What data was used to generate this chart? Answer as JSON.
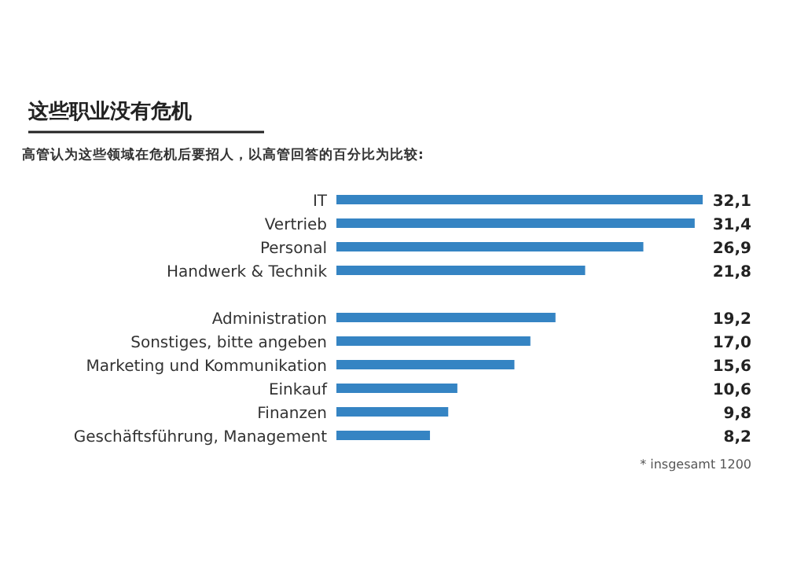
{
  "chart_data": {
    "type": "bar",
    "orientation": "horizontal",
    "title": "这些职业没有危机",
    "subtitle": "高管认为这些领域在危机后要招人，以高管回答的百分比为比较:",
    "categories": [
      "IT",
      "Vertrieb",
      "Personal",
      "Handwerk & Technik",
      null,
      "Administration",
      "Sonstiges, bitte angeben",
      "Marketing und Kommunikation",
      "Einkauf",
      "Finanzen",
      "Geschäftsführung, Management"
    ],
    "values": [
      32.1,
      31.4,
      26.9,
      21.8,
      null,
      19.2,
      17.0,
      15.6,
      10.6,
      9.8,
      8.2
    ],
    "value_labels": [
      "32,1",
      "31,4",
      "26,9",
      "21,8",
      null,
      "19,2",
      "17,0",
      "15,6",
      "10,6",
      "9,8",
      "8,2"
    ],
    "color": "#3584c3",
    "xlim": [
      0,
      32.1
    ],
    "tick_labels": "y",
    "annotations": [
      "* insgesamt 1200"
    ]
  }
}
